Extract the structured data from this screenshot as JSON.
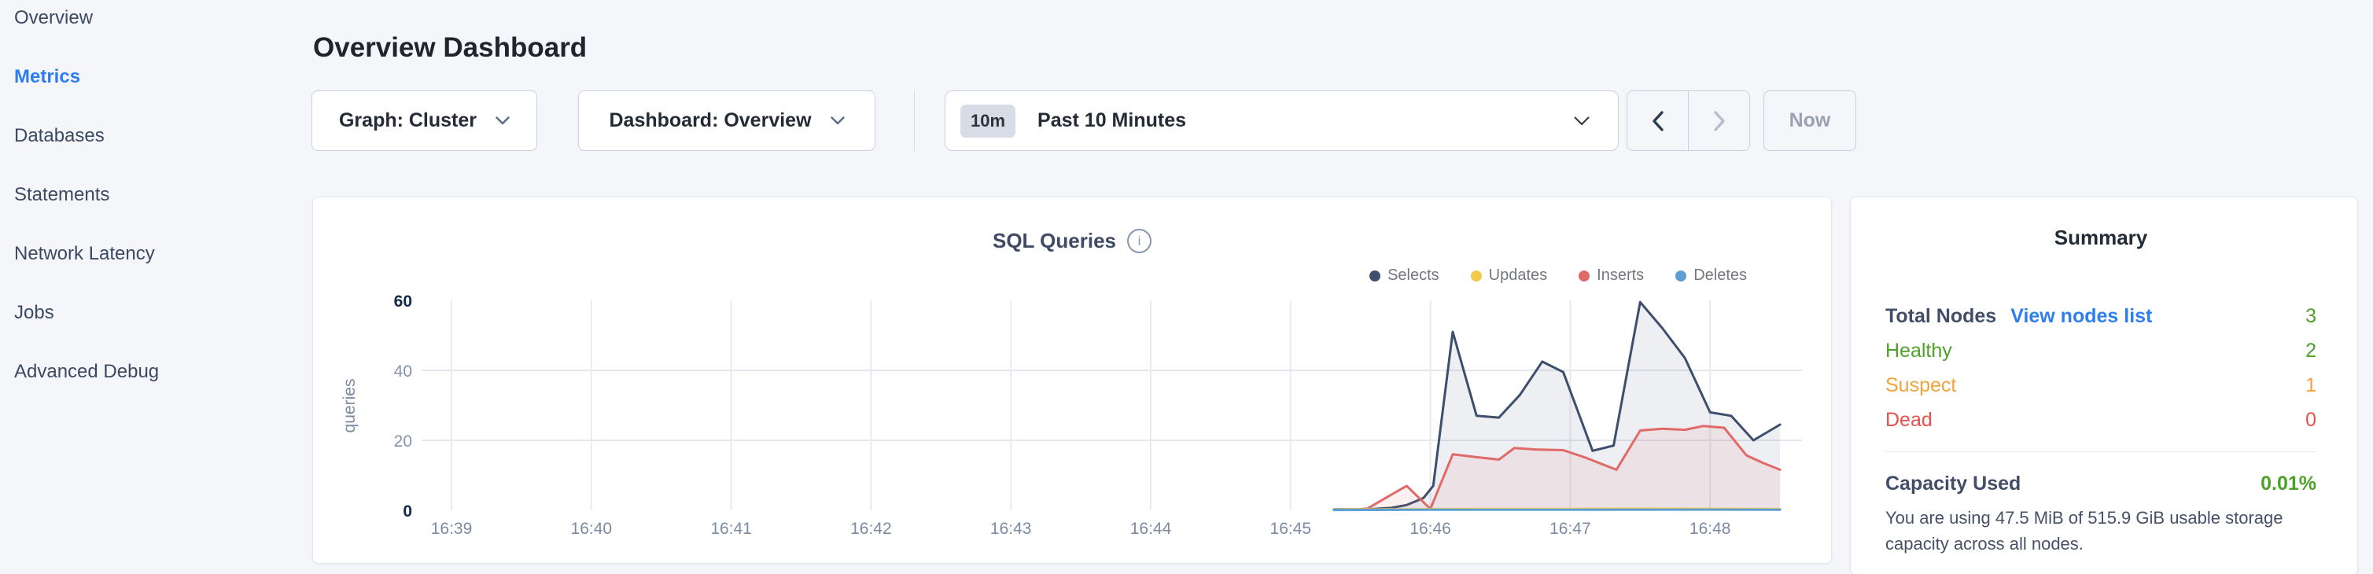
{
  "sidebar": {
    "items": [
      {
        "label": "Overview",
        "active": false
      },
      {
        "label": "Metrics",
        "active": true
      },
      {
        "label": "Databases",
        "active": false
      },
      {
        "label": "Statements",
        "active": false
      },
      {
        "label": "Network Latency",
        "active": false
      },
      {
        "label": "Jobs",
        "active": false
      },
      {
        "label": "Advanced Debug",
        "active": false
      }
    ],
    "active_color": "#2e7cf0"
  },
  "header": {
    "title": "Overview Dashboard"
  },
  "controls": {
    "graph_dropdown": {
      "label": "Graph: Cluster"
    },
    "dashboard_dropdown": {
      "label": "Dashboard: Overview"
    },
    "time_window": {
      "badge": "10m",
      "label": "Past 10 Minutes"
    },
    "now_button": {
      "label": "Now",
      "disabled": true
    },
    "prev_arrow_color": "#2c3a52",
    "next_arrow_color": "#b6bdca"
  },
  "icons": {
    "info_glyph": "i"
  },
  "chart_data": {
    "type": "area",
    "title": "SQL Queries",
    "ylabel": "queries",
    "ylim": [
      0,
      60
    ],
    "yticks": [
      0,
      20,
      40,
      60
    ],
    "ytick_emphasis": [
      0,
      60
    ],
    "grid_lines_y": [
      20,
      40
    ],
    "grid": true,
    "legend_position": "top-right",
    "x_ticks": {
      "values": [
        39,
        40,
        41,
        42,
        43,
        44,
        45,
        46,
        47,
        48
      ],
      "labels": [
        "16:39",
        "16:40",
        "16:41",
        "16:42",
        "16:43",
        "16:44",
        "16:45",
        "16:46",
        "16:47",
        "16:48"
      ]
    },
    "x_range_minutes": [
      38.81,
      48.66
    ],
    "series": [
      {
        "name": "Selects",
        "color": "#3d4f6d",
        "fill": "rgba(61,79,109,0.09)",
        "points": [
          [
            45.31,
            0.3
          ],
          [
            45.55,
            0.3
          ],
          [
            45.72,
            0.7
          ],
          [
            45.83,
            1.5
          ],
          [
            45.95,
            3.5
          ],
          [
            46.02,
            7
          ],
          [
            46.16,
            51
          ],
          [
            46.33,
            27
          ],
          [
            46.49,
            26.5
          ],
          [
            46.64,
            33
          ],
          [
            46.8,
            42.5
          ],
          [
            46.95,
            39.5
          ],
          [
            47.16,
            17
          ],
          [
            47.31,
            18.5
          ],
          [
            47.5,
            59.5
          ],
          [
            47.66,
            52
          ],
          [
            47.82,
            43.5
          ],
          [
            48.0,
            28
          ],
          [
            48.15,
            27
          ],
          [
            48.31,
            20
          ],
          [
            48.5,
            24.5
          ]
        ]
      },
      {
        "name": "Updates",
        "color": "#f3ca4d",
        "fill": "none",
        "points": [
          [
            45.31,
            0.2
          ],
          [
            45.8,
            0.3
          ],
          [
            46.3,
            0.4
          ],
          [
            47.0,
            0.4
          ],
          [
            47.8,
            0.45
          ],
          [
            48.5,
            0.35
          ]
        ]
      },
      {
        "name": "Inserts",
        "color": "#e06a68",
        "fill": "rgba(224,106,104,0.10)",
        "points": [
          [
            45.42,
            0.1
          ],
          [
            45.55,
            0.5
          ],
          [
            45.7,
            4
          ],
          [
            45.83,
            7
          ],
          [
            46.0,
            0.4
          ],
          [
            46.16,
            16
          ],
          [
            46.33,
            15.2
          ],
          [
            46.49,
            14.5
          ],
          [
            46.6,
            17.8
          ],
          [
            46.75,
            17.4
          ],
          [
            46.95,
            17.2
          ],
          [
            47.1,
            15.2
          ],
          [
            47.33,
            11.6
          ],
          [
            47.5,
            22.8
          ],
          [
            47.66,
            23.3
          ],
          [
            47.82,
            23
          ],
          [
            47.95,
            24.1
          ],
          [
            48.1,
            23.6
          ],
          [
            48.26,
            15.7
          ],
          [
            48.38,
            13.5
          ],
          [
            48.5,
            11.6
          ]
        ]
      },
      {
        "name": "Deletes",
        "color": "#5c9fd4",
        "fill": "none",
        "points": [
          [
            45.31,
            0.1
          ],
          [
            46.0,
            0.15
          ],
          [
            47.0,
            0.15
          ],
          [
            48.0,
            0.2
          ],
          [
            48.5,
            0.15
          ]
        ]
      }
    ]
  },
  "summary": {
    "title": "Summary",
    "rows": [
      {
        "label": "Total Nodes",
        "link": "View nodes list",
        "value": "3",
        "color": "#4ea128",
        "label_color": "#424e68"
      },
      {
        "label": "Healthy",
        "value": "2",
        "color": "#4ea128"
      },
      {
        "label": "Suspect",
        "value": "1",
        "color": "#f1a23c"
      },
      {
        "label": "Dead",
        "value": "0",
        "color": "#e8504e"
      }
    ],
    "link_color": "#2f7ef0",
    "capacity": {
      "label": "Capacity Used",
      "value": "0.01%",
      "value_color": "#4ea128",
      "description": "You are using 47.5 MiB of 515.9 GiB usable storage capacity across all nodes."
    }
  }
}
